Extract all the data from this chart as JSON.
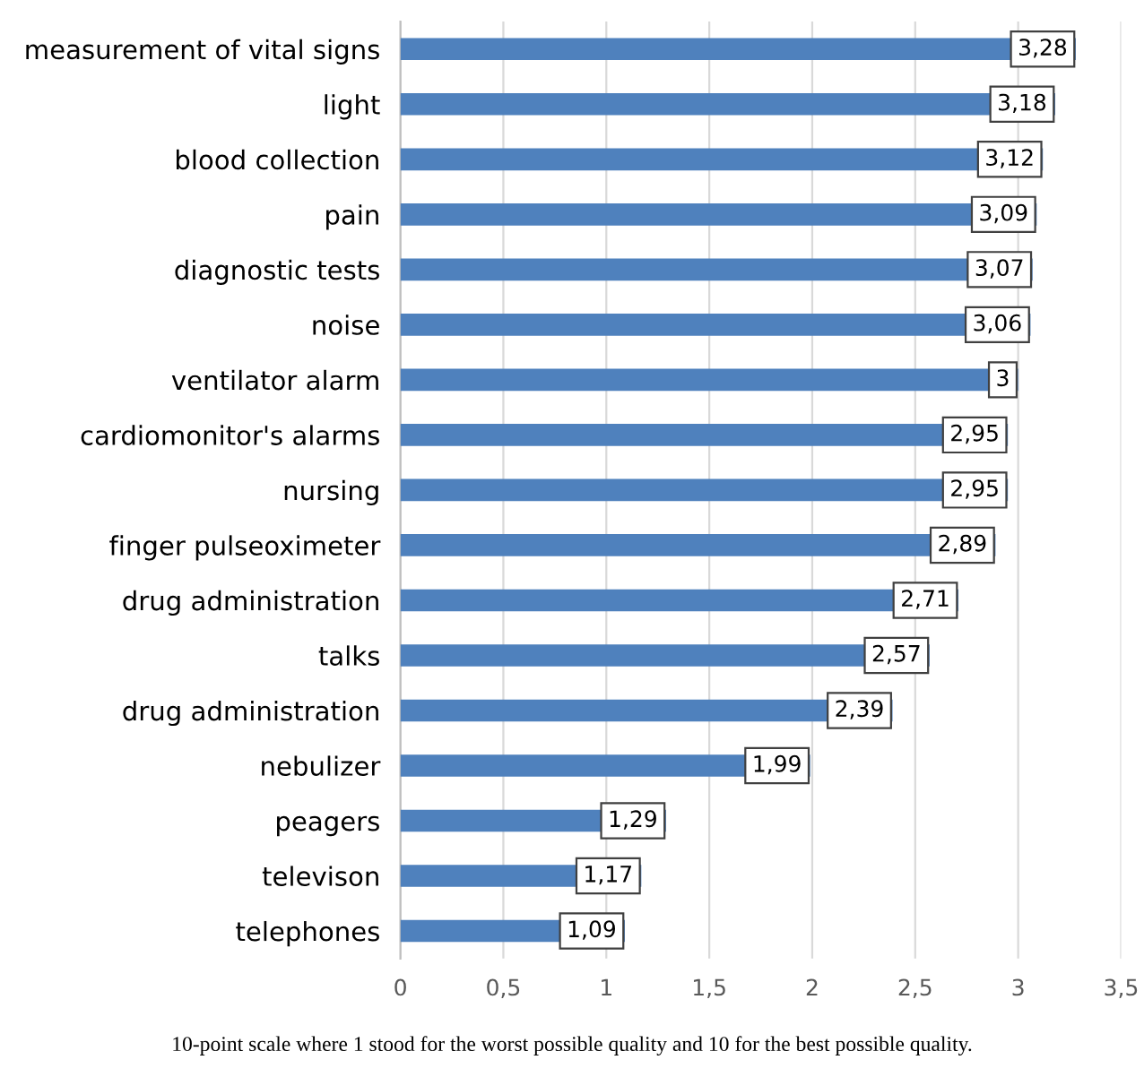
{
  "chart_data": {
    "type": "bar",
    "orientation": "horizontal",
    "categories": [
      "measurement of vital signs",
      "light",
      "blood collection",
      "pain",
      "diagnostic tests",
      "noise",
      "ventilator alarm",
      "cardiomonitor's alarms",
      "nursing",
      "finger pulseoximeter",
      "drug administration",
      "talks",
      "drug administration",
      "nebulizer",
      "peagers",
      "televison",
      "telephones"
    ],
    "values": [
      3.28,
      3.18,
      3.12,
      3.09,
      3.07,
      3.06,
      3,
      2.95,
      2.95,
      2.89,
      2.71,
      2.57,
      2.39,
      1.99,
      1.29,
      1.17,
      1.09
    ],
    "value_labels": [
      "3,28",
      "3,18",
      "3,12",
      "3,09",
      "3,07",
      "3,06",
      "3",
      "2,95",
      "2,95",
      "2,89",
      "2,71",
      "2,57",
      "2,39",
      "1,99",
      "1,29",
      "1,17",
      "1,09"
    ],
    "color": "#4f81bd",
    "xlim": [
      0,
      3.5
    ],
    "xticks": [
      0,
      {
        "value": 0.5,
        "label": "0,5"
      },
      1,
      {
        "value": 1.5,
        "label": "1,5"
      },
      2,
      {
        "value": 2.5,
        "label": "2,5"
      },
      3,
      {
        "value": 3.5,
        "label": "3,5"
      }
    ],
    "grid": "x",
    "annotations": [
      "10-point scale where 1 stood for the worst possible quality and 10 for the best possible quality."
    ]
  }
}
